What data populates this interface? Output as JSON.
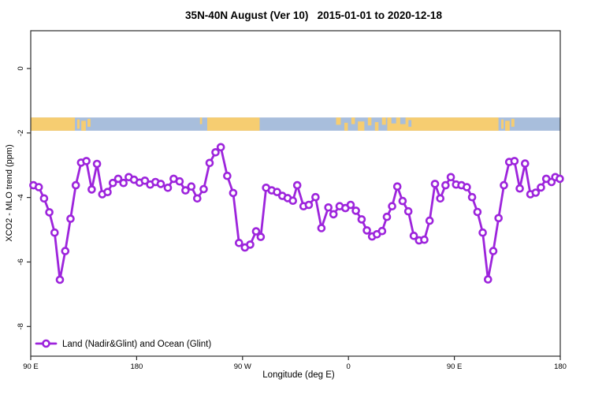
{
  "page": {
    "window_title": "35N-40N August (Ver 10)   2015-01-01 to 2020-12-18"
  },
  "chart_data": {
    "type": "line",
    "title": "35N-40N August (Ver 10)   2015-01-01 to 2020-12-18",
    "xlabel": "Longitude (deg E)",
    "ylabel": "XCO2 - MLO trend (ppm)",
    "xlim": [
      90,
      540
    ],
    "ylim": [
      -8.92,
      1.17
    ],
    "grid": false,
    "legend_position": "bottom-left",
    "legend_label": "Land (Nadir&Glint) and Ocean (Glint)",
    "x_ticks": [
      {
        "value": 90,
        "label": "90 E"
      },
      {
        "value": 180,
        "label": "180"
      },
      {
        "value": 270,
        "label": "90 W"
      },
      {
        "value": 360,
        "label": "0"
      },
      {
        "value": 450,
        "label": "90 E"
      },
      {
        "value": 540,
        "label": "180"
      }
    ],
    "y_ticks": [
      {
        "value": 0,
        "label": "0"
      },
      {
        "value": -2,
        "label": "-2"
      },
      {
        "value": -4,
        "label": "-4"
      },
      {
        "value": -6,
        "label": "-6"
      },
      {
        "value": -8,
        "label": "-8"
      }
    ],
    "colors": {
      "series": "#9D24DC",
      "marker_fill": "#ffffff",
      "ocean": "#A8BEDC",
      "land": "#F6CD71",
      "axis": "#2b2b2b",
      "text": "#000000"
    },
    "map_band": {
      "description": "35N-40N latitude strip map: ocean base with land segments, plotted between values -1.52 and -1.93",
      "value_top": -1.52,
      "value_bottom": -1.93,
      "ocean_extent": [
        90,
        540
      ],
      "land_segments": [
        [
          90,
          127.5
        ],
        [
          129.5,
          131.5,
          0.15,
          0.7
        ],
        [
          133,
          136.8,
          0.25,
          0.75
        ],
        [
          138.2,
          140.8,
          0.1,
          0.6
        ],
        [
          233.8,
          235.6,
          0.0,
          0.5
        ],
        [
          240,
          284.5
        ],
        [
          349.5,
          353.5,
          0,
          0.55
        ],
        [
          356.5,
          359.5,
          0.4,
          0.6
        ],
        [
          362.5,
          365.5,
          0,
          0.5
        ],
        [
          368,
          373.5,
          0.3,
          0.7
        ],
        [
          376.5,
          379.5,
          0,
          0.6
        ],
        [
          382.5,
          385.5,
          0.35,
          0.65
        ],
        [
          388.5,
          391.8,
          0,
          0.55
        ],
        [
          393,
          487.5
        ],
        [
          489.8,
          491.8,
          0.15,
          0.7
        ],
        [
          493.2,
          497,
          0.25,
          0.75
        ],
        [
          498.4,
          501,
          0.1,
          0.6
        ]
      ],
      "ocean_patches": [
        [
          396.5,
          400.5,
          0,
          0.45
        ],
        [
          404,
          408.5,
          0,
          0.5
        ],
        [
          411,
          413.5,
          0.2,
          0.5
        ]
      ]
    },
    "series": [
      {
        "name": "Land (Nadir&Glint) and Ocean (Glint)",
        "marker": "open-circle",
        "points": [
          [
            92.3,
            -3.62
          ],
          [
            96.8,
            -3.68
          ],
          [
            101.3,
            -4.03
          ],
          [
            105.8,
            -4.46
          ],
          [
            110.3,
            -5.09
          ],
          [
            114.8,
            -6.55
          ],
          [
            119.3,
            -5.66
          ],
          [
            123.8,
            -4.66
          ],
          [
            128.3,
            -3.62
          ],
          [
            132.8,
            -2.92
          ],
          [
            137.3,
            -2.87
          ],
          [
            141.8,
            -3.75
          ],
          [
            146.3,
            -2.96
          ],
          [
            150.8,
            -3.9
          ],
          [
            155.3,
            -3.83
          ],
          [
            159.8,
            -3.55
          ],
          [
            164.3,
            -3.42
          ],
          [
            168.8,
            -3.55
          ],
          [
            173.3,
            -3.37
          ],
          [
            177.8,
            -3.45
          ],
          [
            182.5,
            -3.54
          ],
          [
            187,
            -3.48
          ],
          [
            191.5,
            -3.6
          ],
          [
            196,
            -3.52
          ],
          [
            200.5,
            -3.58
          ],
          [
            206.5,
            -3.7
          ],
          [
            211.5,
            -3.42
          ],
          [
            216.5,
            -3.5
          ],
          [
            221.5,
            -3.78
          ],
          [
            226.5,
            -3.66
          ],
          [
            231.5,
            -4.03
          ],
          [
            237,
            -3.74
          ],
          [
            242,
            -2.93
          ],
          [
            247,
            -2.6
          ],
          [
            251.5,
            -2.44
          ],
          [
            257,
            -3.33
          ],
          [
            262,
            -3.86
          ],
          [
            267,
            -5.41
          ],
          [
            272,
            -5.55
          ],
          [
            276.5,
            -5.46
          ],
          [
            281.5,
            -5.05
          ],
          [
            285.5,
            -5.22
          ],
          [
            290,
            -3.7
          ],
          [
            294.8,
            -3.78
          ],
          [
            299.3,
            -3.83
          ],
          [
            303.8,
            -3.95
          ],
          [
            308.3,
            -4.02
          ],
          [
            312.8,
            -4.1
          ],
          [
            316.5,
            -3.62
          ],
          [
            321.8,
            -4.27
          ],
          [
            326.3,
            -4.23
          ],
          [
            332,
            -3.99
          ],
          [
            337,
            -4.95
          ],
          [
            342.9,
            -4.31
          ],
          [
            347.3,
            -4.52
          ],
          [
            352.5,
            -4.27
          ],
          [
            357.4,
            -4.33
          ],
          [
            361.9,
            -4.23
          ],
          [
            366.3,
            -4.41
          ],
          [
            371.2,
            -4.68
          ],
          [
            375.7,
            -5.02
          ],
          [
            380.1,
            -5.21
          ],
          [
            384.2,
            -5.14
          ],
          [
            388.6,
            -5.04
          ],
          [
            392.7,
            -4.6
          ],
          [
            397.1,
            -4.27
          ],
          [
            401.5,
            -3.66
          ],
          [
            406,
            -4.11
          ],
          [
            410.9,
            -4.43
          ],
          [
            415.5,
            -5.19
          ],
          [
            420,
            -5.33
          ],
          [
            424.5,
            -5.31
          ],
          [
            429,
            -4.72
          ],
          [
            433.5,
            -3.58
          ],
          [
            438,
            -4.03
          ],
          [
            442.5,
            -3.62
          ],
          [
            447,
            -3.37
          ],
          [
            451.5,
            -3.6
          ],
          [
            456,
            -3.62
          ],
          [
            460.6,
            -3.68
          ],
          [
            465.1,
            -3.99
          ],
          [
            469.6,
            -4.45
          ],
          [
            474.1,
            -5.09
          ],
          [
            478.6,
            -6.54
          ],
          [
            483.1,
            -5.66
          ],
          [
            487.6,
            -4.64
          ],
          [
            492.1,
            -3.62
          ],
          [
            496.6,
            -2.9
          ],
          [
            501.1,
            -2.87
          ],
          [
            505.6,
            -3.72
          ],
          [
            510.1,
            -2.95
          ],
          [
            514.6,
            -3.9
          ],
          [
            519.1,
            -3.85
          ],
          [
            523.6,
            -3.69
          ],
          [
            528.1,
            -3.42
          ],
          [
            532.6,
            -3.52
          ],
          [
            535.8,
            -3.37
          ],
          [
            539.6,
            -3.42
          ]
        ]
      }
    ]
  }
}
